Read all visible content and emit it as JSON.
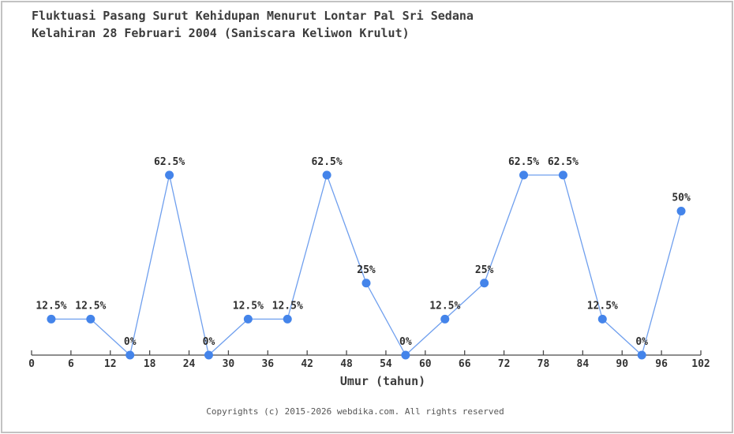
{
  "title": {
    "line1": "Fluktuasi Pasang Surut Kehidupan Menurut Lontar Pal Sri Sedana",
    "line2": "Kelahiran 28 Februari 2004 (Saniscara Keliwon Krulut)"
  },
  "chart_data": {
    "type": "line",
    "x": [
      3,
      9,
      15,
      21,
      27,
      33,
      39,
      45,
      51,
      57,
      63,
      69,
      75,
      81,
      87,
      93,
      99
    ],
    "values": [
      12.5,
      12.5,
      0,
      62.5,
      0,
      12.5,
      12.5,
      62.5,
      25,
      0,
      12.5,
      25,
      62.5,
      62.5,
      12.5,
      0,
      50
    ],
    "point_labels": [
      "12.5%",
      "12.5%",
      "0%",
      "62.5%",
      "0%",
      "12.5%",
      "12.5%",
      "62.5%",
      "25%",
      "0%",
      "12.5%",
      "25%",
      "62.5%",
      "62.5%",
      "12.5%",
      "0%",
      "50%"
    ],
    "title": "Fluktuasi Pasang Surut Kehidupan Menurut Lontar Pal Sri Sedana Kelahiran 28 Februari 2004 (Saniscara Keliwon Krulut)",
    "xlabel": "Umur (tahun)",
    "ylabel": "",
    "x_ticks": [
      0,
      6,
      12,
      18,
      24,
      30,
      36,
      42,
      48,
      54,
      60,
      66,
      72,
      78,
      84,
      90,
      96,
      102
    ],
    "xlim": [
      0,
      102
    ],
    "ylim": [
      0,
      100
    ],
    "grid": false,
    "legend_position": "none",
    "colors": {
      "line": "#6f9fee",
      "marker": "#4484ea",
      "axis": "#4a4a4a",
      "text": "#3c3c3c"
    }
  },
  "footer": {
    "copyright": "Copyrights (c) 2015-2026 webdika.com. All rights reserved"
  }
}
